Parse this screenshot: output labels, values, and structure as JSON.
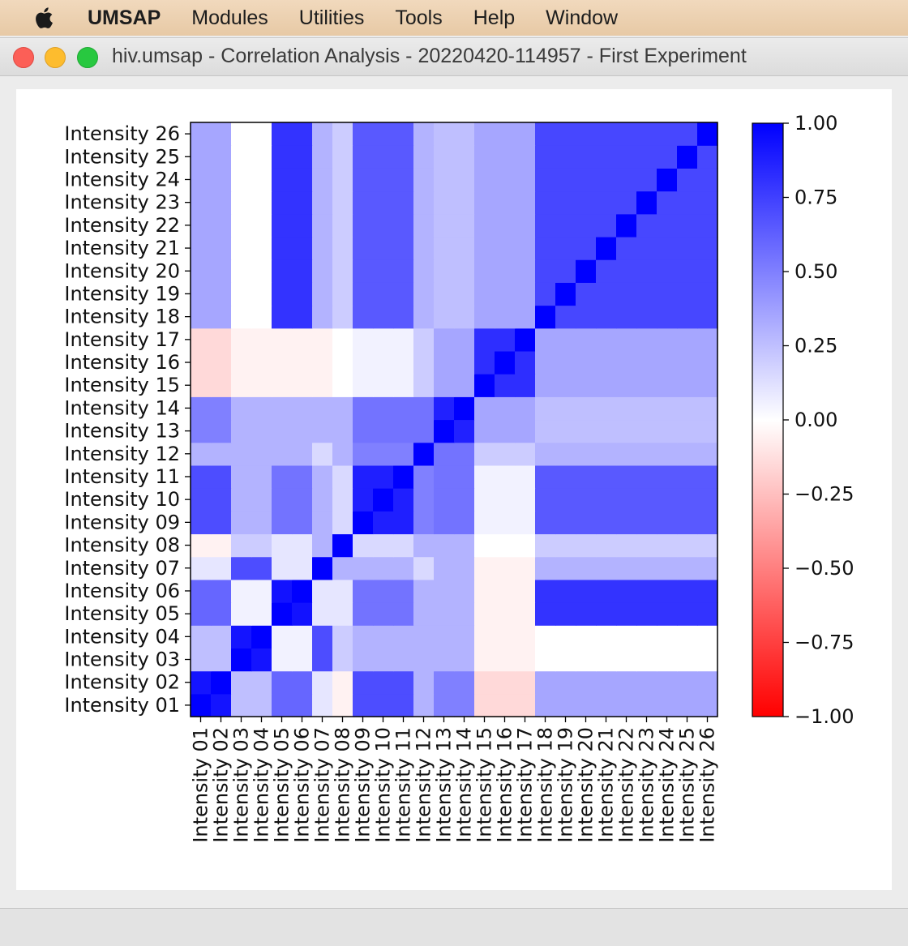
{
  "menubar": {
    "apple_icon": "apple-icon",
    "app_name": "UMSAP",
    "items": [
      "Modules",
      "Utilities",
      "Tools",
      "Help",
      "Window"
    ]
  },
  "window": {
    "title": "hiv.umsap - Correlation Analysis - 20220420-114957 - First Experiment"
  },
  "chart_data": {
    "type": "heatmap",
    "labels": [
      "Intensity 01",
      "Intensity 02",
      "Intensity 03",
      "Intensity 04",
      "Intensity 05",
      "Intensity 06",
      "Intensity 07",
      "Intensity 08",
      "Intensity 09",
      "Intensity 10",
      "Intensity 11",
      "Intensity 12",
      "Intensity 13",
      "Intensity 14",
      "Intensity 15",
      "Intensity 16",
      "Intensity 17",
      "Intensity 18",
      "Intensity 19",
      "Intensity 20",
      "Intensity 21",
      "Intensity 22",
      "Intensity 23",
      "Intensity 24",
      "Intensity 25",
      "Intensity 26"
    ],
    "colormap": [
      "#ff0000",
      "#ffffff",
      "#0000ff"
    ],
    "colorbar": {
      "range": [
        -1.0,
        1.0
      ],
      "ticks": [
        1.0,
        0.75,
        0.5,
        0.25,
        0.0,
        -0.25,
        -0.5,
        -0.75,
        -1.0
      ],
      "tick_labels": [
        "1.00",
        "0.75",
        "0.50",
        "0.25",
        "0.00",
        "−0.25",
        "−0.50",
        "−0.75",
        "−1.00"
      ]
    },
    "blocks": [
      {
        "rows": [
          0,
          1
        ],
        "value": 0.92
      },
      {
        "rows": [
          2,
          3
        ],
        "value": 0.92
      },
      {
        "rows": [
          4,
          5
        ],
        "value": 0.93
      },
      {
        "rows": [
          8,
          9,
          10
        ],
        "value": 0.88
      },
      {
        "rows": [
          12,
          13
        ],
        "value": 0.87
      },
      {
        "rows": [
          14,
          15,
          16
        ],
        "value": 0.82
      },
      {
        "rows": [
          17,
          18,
          19,
          20,
          21,
          22,
          23,
          24,
          25
        ],
        "value": 0.72
      }
    ],
    "default_value": 0.3,
    "specific": [
      [
        0,
        2,
        0.25
      ],
      [
        0,
        4,
        0.6
      ],
      [
        0,
        6,
        0.1
      ],
      [
        0,
        7,
        -0.05
      ],
      [
        0,
        8,
        0.7
      ],
      [
        0,
        14,
        0.1
      ],
      [
        0,
        16,
        -0.15
      ],
      [
        0,
        17,
        0.35
      ],
      [
        0,
        23,
        0.35
      ],
      [
        2,
        4,
        0.05
      ],
      [
        2,
        6,
        0.7
      ],
      [
        2,
        7,
        0.2
      ],
      [
        2,
        14,
        0.05
      ],
      [
        2,
        16,
        -0.05
      ],
      [
        2,
        24,
        0.0
      ],
      [
        4,
        6,
        0.1
      ],
      [
        4,
        7,
        0.1
      ],
      [
        4,
        8,
        0.65
      ],
      [
        4,
        14,
        0.1
      ],
      [
        4,
        16,
        -0.05
      ],
      [
        4,
        17,
        0.75
      ],
      [
        4,
        21,
        0.8
      ],
      [
        6,
        7,
        0.3
      ],
      [
        6,
        8,
        0.3
      ],
      [
        6,
        14,
        0.0
      ],
      [
        6,
        16,
        -0.05
      ],
      [
        7,
        8,
        0.15
      ],
      [
        7,
        14,
        0.0
      ],
      [
        7,
        16,
        0.0
      ],
      [
        7,
        20,
        0.2
      ],
      [
        8,
        11,
        0.5
      ],
      [
        8,
        14,
        0.2
      ],
      [
        8,
        16,
        0.05
      ],
      [
        8,
        17,
        0.65
      ],
      [
        11,
        12,
        0.55
      ],
      [
        11,
        14,
        0.2
      ],
      [
        12,
        14,
        0.35
      ],
      [
        12,
        17,
        0.25
      ],
      [
        14,
        17,
        0.3
      ],
      [
        16,
        17,
        0.2
      ],
      [
        16,
        21,
        0.1
      ],
      [
        16,
        24,
        0.35
      ],
      [
        0,
        12,
        0.5
      ],
      [
        3,
        13,
        0.3
      ],
      [
        5,
        9,
        0.55
      ],
      [
        10,
        13,
        0.55
      ],
      [
        6,
        11,
        0.15
      ]
    ]
  }
}
